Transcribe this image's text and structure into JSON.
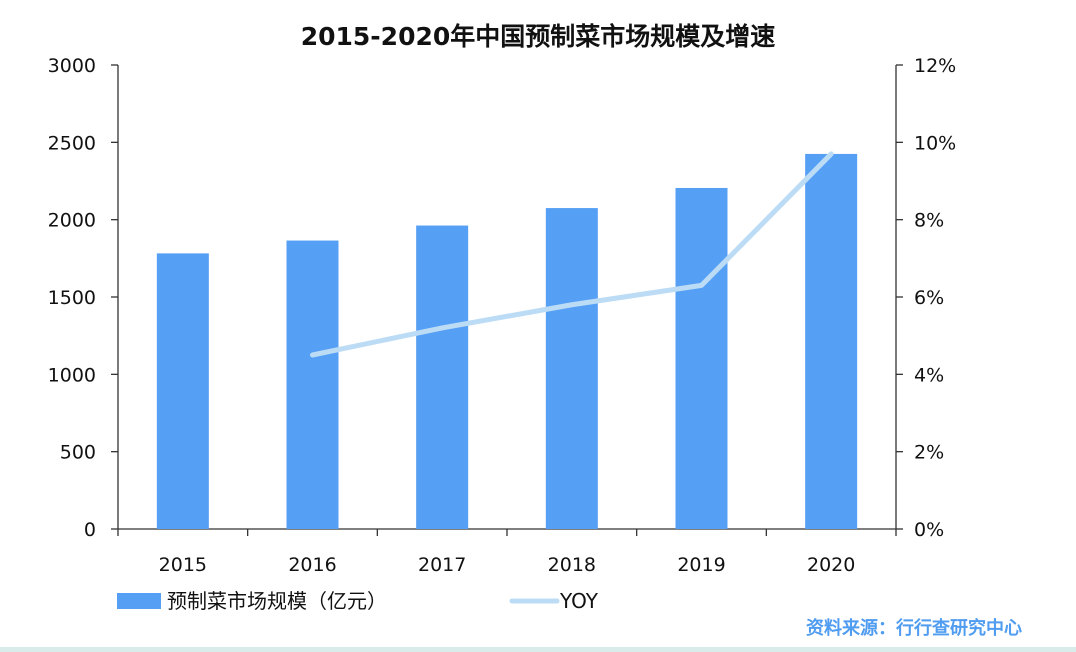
{
  "chart_data": {
    "type": "bar",
    "title": "2015-2020年中国预制菜市场规模及增速",
    "categories": [
      "2015",
      "2016",
      "2017",
      "2018",
      "2019",
      "2020"
    ],
    "series": [
      {
        "name": "预制菜市场规模（亿元）",
        "type": "bar",
        "axis": "left",
        "color": "#559ff5",
        "values": [
          1782,
          1865,
          1962,
          2075,
          2205,
          2425
        ]
      },
      {
        "name": "YOY",
        "type": "line",
        "axis": "right",
        "color": "#bcdcf6",
        "values": [
          null,
          4.5,
          5.2,
          5.8,
          6.3,
          9.7
        ]
      }
    ],
    "y_left": {
      "range": [
        0,
        3000
      ],
      "ticks": [
        "0",
        "500",
        "1000",
        "1500",
        "2000",
        "2500",
        "3000"
      ]
    },
    "y_right": {
      "range": [
        0,
        12
      ],
      "ticks": [
        "0%",
        "2%",
        "4%",
        "6%",
        "8%",
        "10%",
        "12%"
      ]
    },
    "grid": false,
    "legend_position": "bottom-left"
  },
  "source": "资料来源：行行查研究中心"
}
